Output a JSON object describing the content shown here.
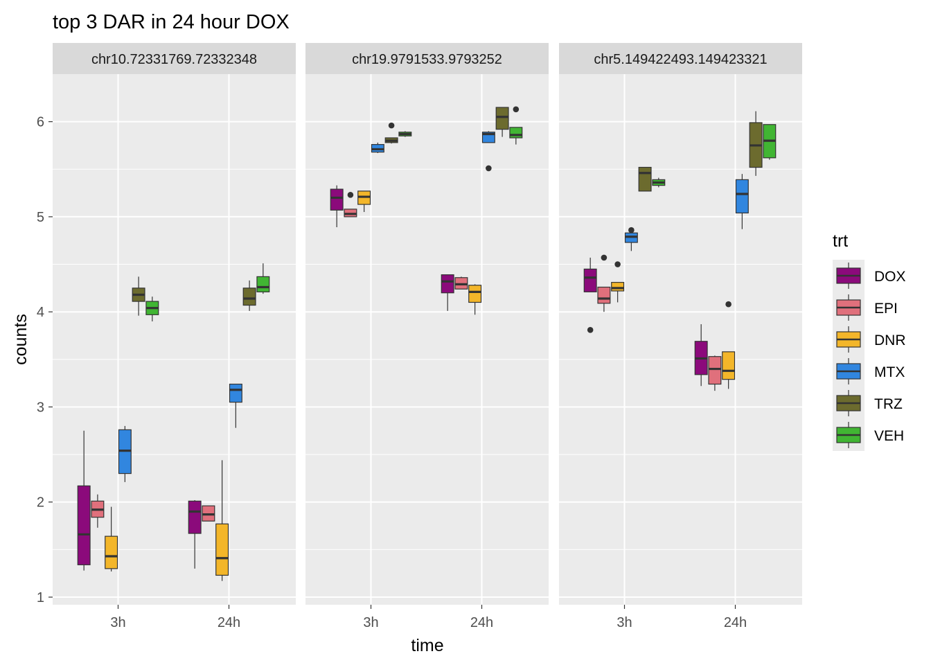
{
  "chart_data": {
    "type": "boxplot",
    "title": "top 3 DAR in 24 hour DOX",
    "xlabel": "time",
    "ylabel": "counts",
    "ylim": [
      0.92,
      6.5
    ],
    "y_ticks": [
      1,
      2,
      3,
      4,
      5,
      6
    ],
    "categories": [
      "3h",
      "24h"
    ],
    "grid": true,
    "legend": {
      "title": "trt",
      "position": "right",
      "items": [
        {
          "name": "DOX",
          "color": "#8b0a7b"
        },
        {
          "name": "EPI",
          "color": "#e0707c"
        },
        {
          "name": "DNR",
          "color": "#f3b62a"
        },
        {
          "name": "MTX",
          "color": "#3186df"
        },
        {
          "name": "TRZ",
          "color": "#6c6b2e"
        },
        {
          "name": "VEH",
          "color": "#41b533"
        }
      ]
    },
    "panels": [
      {
        "label": "chr10.72331769.72332348",
        "boxes": [
          {
            "time": "3h",
            "trt": "DOX",
            "low": 1.28,
            "q1": 1.34,
            "median": 1.66,
            "q3": 2.17,
            "high": 2.75,
            "outliers": []
          },
          {
            "time": "3h",
            "trt": "EPI",
            "low": 1.73,
            "q1": 1.84,
            "median": 1.92,
            "q3": 2.01,
            "high": 2.08,
            "outliers": []
          },
          {
            "time": "3h",
            "trt": "DNR",
            "low": 1.27,
            "q1": 1.3,
            "median": 1.43,
            "q3": 1.64,
            "high": 1.95,
            "outliers": []
          },
          {
            "time": "3h",
            "trt": "MTX",
            "low": 2.21,
            "q1": 2.3,
            "median": 2.54,
            "q3": 2.76,
            "high": 2.8,
            "outliers": []
          },
          {
            "time": "3h",
            "trt": "TRZ",
            "low": 3.96,
            "q1": 4.11,
            "median": 4.18,
            "q3": 4.25,
            "high": 4.37,
            "outliers": []
          },
          {
            "time": "3h",
            "trt": "VEH",
            "low": 3.9,
            "q1": 3.97,
            "median": 4.04,
            "q3": 4.11,
            "high": 4.16,
            "outliers": []
          },
          {
            "time": "24h",
            "trt": "DOX",
            "low": 1.3,
            "q1": 1.67,
            "median": 1.9,
            "q3": 2.01,
            "high": 2.02,
            "outliers": []
          },
          {
            "time": "24h",
            "trt": "EPI",
            "low": 1.8,
            "q1": 1.8,
            "median": 1.87,
            "q3": 1.96,
            "high": 1.96,
            "outliers": []
          },
          {
            "time": "24h",
            "trt": "DNR",
            "low": 1.17,
            "q1": 1.23,
            "median": 1.41,
            "q3": 1.77,
            "high": 2.44,
            "outliers": []
          },
          {
            "time": "24h",
            "trt": "MTX",
            "low": 2.78,
            "q1": 3.05,
            "median": 3.18,
            "q3": 3.24,
            "high": 3.24,
            "outliers": []
          },
          {
            "time": "24h",
            "trt": "TRZ",
            "low": 4.01,
            "q1": 4.07,
            "median": 4.14,
            "q3": 4.25,
            "high": 4.33,
            "outliers": []
          },
          {
            "time": "24h",
            "trt": "VEH",
            "low": 4.19,
            "q1": 4.21,
            "median": 4.26,
            "q3": 4.37,
            "high": 4.51,
            "outliers": []
          }
        ]
      },
      {
        "label": "chr19.9791533.9793252",
        "boxes": [
          {
            "time": "3h",
            "trt": "DOX",
            "low": 4.89,
            "q1": 5.07,
            "median": 5.2,
            "q3": 5.29,
            "high": 5.33,
            "outliers": []
          },
          {
            "time": "3h",
            "trt": "EPI",
            "low": 5.0,
            "q1": 5.0,
            "median": 5.03,
            "q3": 5.08,
            "high": 5.08,
            "outliers": [
              5.23
            ]
          },
          {
            "time": "3h",
            "trt": "DNR",
            "low": 5.05,
            "q1": 5.13,
            "median": 5.21,
            "q3": 5.27,
            "high": 5.27,
            "outliers": []
          },
          {
            "time": "3h",
            "trt": "MTX",
            "low": 5.67,
            "q1": 5.68,
            "median": 5.71,
            "q3": 5.76,
            "high": 5.78,
            "outliers": []
          },
          {
            "time": "3h",
            "trt": "TRZ",
            "low": 5.77,
            "q1": 5.78,
            "median": 5.8,
            "q3": 5.83,
            "high": 5.83,
            "outliers": [
              5.96
            ]
          },
          {
            "time": "3h",
            "trt": "VEH",
            "low": 5.84,
            "q1": 5.85,
            "median": 5.87,
            "q3": 5.89,
            "high": 5.9,
            "outliers": []
          },
          {
            "time": "24h",
            "trt": "DOX",
            "low": 4.01,
            "q1": 4.2,
            "median": 4.32,
            "q3": 4.39,
            "high": 4.39,
            "outliers": []
          },
          {
            "time": "24h",
            "trt": "EPI",
            "low": 4.24,
            "q1": 4.24,
            "median": 4.29,
            "q3": 4.36,
            "high": 4.37,
            "outliers": []
          },
          {
            "time": "24h",
            "trt": "DNR",
            "low": 3.97,
            "q1": 4.1,
            "median": 4.21,
            "q3": 4.28,
            "high": 4.29,
            "outliers": []
          },
          {
            "time": "24h",
            "trt": "MTX",
            "low": 5.78,
            "q1": 5.78,
            "median": 5.87,
            "q3": 5.89,
            "high": 5.9,
            "outliers": [
              5.51
            ]
          },
          {
            "time": "24h",
            "trt": "TRZ",
            "low": 5.84,
            "q1": 5.92,
            "median": 6.05,
            "q3": 6.15,
            "high": 6.15,
            "outliers": []
          },
          {
            "time": "24h",
            "trt": "VEH",
            "low": 5.76,
            "q1": 5.83,
            "median": 5.86,
            "q3": 5.94,
            "high": 5.94,
            "outliers": [
              6.13
            ]
          }
        ]
      },
      {
        "label": "chr5.149422493.149423321",
        "boxes": [
          {
            "time": "3h",
            "trt": "DOX",
            "low": 4.21,
            "q1": 4.21,
            "median": 4.36,
            "q3": 4.45,
            "high": 4.57,
            "outliers": [
              3.81
            ]
          },
          {
            "time": "3h",
            "trt": "EPI",
            "low": 4.0,
            "q1": 4.09,
            "median": 4.14,
            "q3": 4.26,
            "high": 4.26,
            "outliers": [
              4.57
            ]
          },
          {
            "time": "3h",
            "trt": "DNR",
            "low": 4.1,
            "q1": 4.22,
            "median": 4.25,
            "q3": 4.31,
            "high": 4.31,
            "outliers": [
              4.5
            ]
          },
          {
            "time": "3h",
            "trt": "MTX",
            "low": 4.64,
            "q1": 4.73,
            "median": 4.79,
            "q3": 4.83,
            "high": 4.83,
            "outliers": [
              4.86
            ]
          },
          {
            "time": "3h",
            "trt": "TRZ",
            "low": 5.27,
            "q1": 5.27,
            "median": 5.46,
            "q3": 5.52,
            "high": 5.52,
            "outliers": []
          },
          {
            "time": "3h",
            "trt": "VEH",
            "low": 5.31,
            "q1": 5.33,
            "median": 5.36,
            "q3": 5.39,
            "high": 5.41,
            "outliers": []
          },
          {
            "time": "24h",
            "trt": "DOX",
            "low": 3.22,
            "q1": 3.34,
            "median": 3.51,
            "q3": 3.69,
            "high": 3.87,
            "outliers": []
          },
          {
            "time": "24h",
            "trt": "EPI",
            "low": 3.17,
            "q1": 3.24,
            "median": 3.4,
            "q3": 3.53,
            "high": 3.54,
            "outliers": []
          },
          {
            "time": "24h",
            "trt": "DNR",
            "low": 3.19,
            "q1": 3.29,
            "median": 3.38,
            "q3": 3.58,
            "high": 3.58,
            "outliers": [
              4.08
            ]
          },
          {
            "time": "24h",
            "trt": "MTX",
            "low": 4.87,
            "q1": 5.04,
            "median": 5.24,
            "q3": 5.39,
            "high": 5.45,
            "outliers": []
          },
          {
            "time": "24h",
            "trt": "TRZ",
            "low": 5.43,
            "q1": 5.52,
            "median": 5.75,
            "q3": 5.99,
            "high": 6.11,
            "outliers": []
          },
          {
            "time": "24h",
            "trt": "VEH",
            "low": 5.6,
            "q1": 5.62,
            "median": 5.8,
            "q3": 5.97,
            "high": 5.97,
            "outliers": []
          }
        ]
      }
    ]
  }
}
